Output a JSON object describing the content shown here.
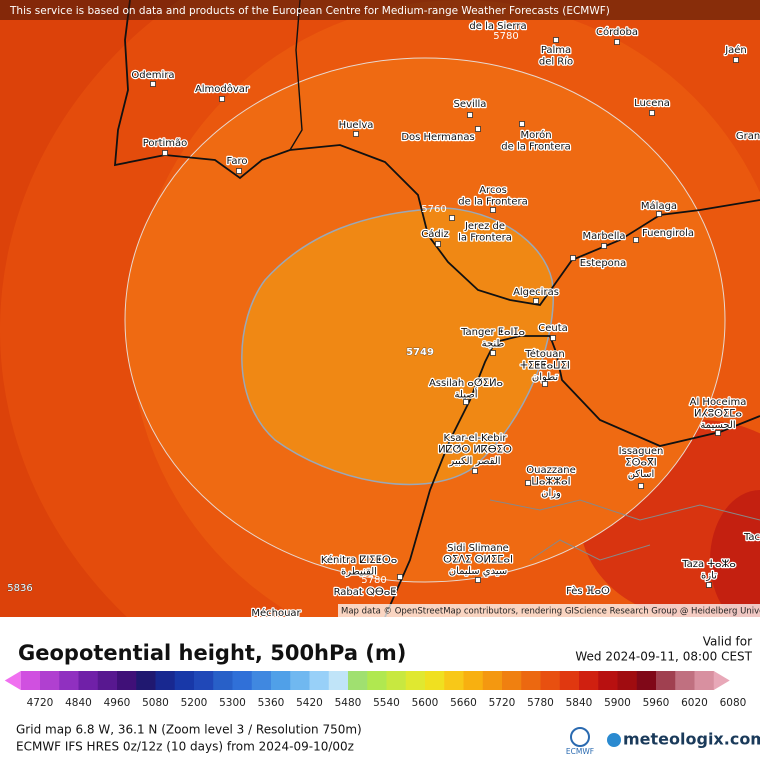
{
  "map": {
    "notice": "This service is based on data and products of the European Centre for Medium-range Weather Forecasts (ECMWF)",
    "attribution": "Map data © OpenStreetMap contributors, rendering GIScience Research Group @ Heidelberg University",
    "contour_labels": [
      "5749",
      "5760",
      "5780",
      "5780",
      "5836"
    ],
    "places": [
      {
        "lines": [
          "Odemira"
        ]
      },
      {
        "lines": [
          "Almodôvar"
        ]
      },
      {
        "lines": [
          "Portimão"
        ]
      },
      {
        "lines": [
          "Faro"
        ]
      },
      {
        "lines": [
          "Huelva"
        ]
      },
      {
        "lines": [
          "Sevilla"
        ]
      },
      {
        "lines": [
          "Dos Hermanas"
        ]
      },
      {
        "lines": [
          "Morón",
          "de la Frontera"
        ]
      },
      {
        "lines": [
          "Palma",
          "del Río"
        ]
      },
      {
        "lines": [
          "Córdoba"
        ]
      },
      {
        "lines": [
          "Jaén"
        ]
      },
      {
        "lines": [
          "Lucena"
        ]
      },
      {
        "lines": [
          "Arcos",
          "de la Frontera"
        ]
      },
      {
        "lines": [
          "Jerez de",
          "la Frontera"
        ]
      },
      {
        "lines": [
          "Cádiz"
        ]
      },
      {
        "lines": [
          "Málaga"
        ]
      },
      {
        "lines": [
          "Fuengirola"
        ]
      },
      {
        "lines": [
          "Marbella"
        ]
      },
      {
        "lines": [
          "Estepona"
        ]
      },
      {
        "lines": [
          "Algeciras"
        ]
      },
      {
        "lines": [
          "Ceuta"
        ]
      },
      {
        "lines": [
          "Tanger ⵟⴰⵏⵊⴰ",
          "طنجة"
        ]
      },
      {
        "lines": [
          "Tétouan",
          "ⵜⵉⵟⵟⴰⵡⵉⵏ",
          "تطوان"
        ]
      },
      {
        "lines": [
          "Assilah ⴰⵚⵉⵍⴰ",
          "أصيلة"
        ]
      },
      {
        "lines": [
          "Ksar-el-Kebir",
          "ⵍⵇⵚⵔ ⵍⴽⴱⵉⵔ",
          "القصر الكبير"
        ]
      },
      {
        "lines": [
          "Ouazzane",
          "ⵡⴰⵣⵣⴰⵏ",
          "وزان"
        ]
      },
      {
        "lines": [
          "Issaguen",
          "ⵉⵙⴰⴳⵏ",
          "اساكن"
        ]
      },
      {
        "lines": [
          "Al Hoceima",
          "ⵍⵃⵓⵙⵉⵎⴰ",
          "الحسيمة"
        ]
      },
      {
        "lines": [
          "Sidi Slimane",
          "ⵙⵉⴷⵉ ⵙⵍⵉⵎⴰⵏ",
          "سيدي سليمان"
        ]
      },
      {
        "lines": [
          "Kénitra ⵇⵏⵉⵟⵔⴰ",
          "القنيطرة"
        ]
      },
      {
        "lines": [
          "Rabat ⵕⴱⴰⵟ"
        ]
      },
      {
        "lines": [
          "Fès ⴼⴰⵙ"
        ]
      },
      {
        "lines": [
          "Taza ⵜⴰⵣⴰ",
          "تازة"
        ]
      },
      {
        "lines": [
          "Méchouar"
        ]
      },
      {
        "lines": [
          "de la Sierra"
        ]
      },
      {
        "lines": [
          "Gran"
        ]
      },
      {
        "lines": [
          "Tac"
        ]
      }
    ]
  },
  "legend": {
    "title": "Geopotential height, 500hPa (m)",
    "valid_label": "Valid for",
    "valid_time": "Wed 2024-09-11, 08:00 CEST",
    "labels": [
      "4720",
      "4840",
      "4960",
      "5080",
      "5200",
      "5300",
      "5360",
      "5420",
      "5480",
      "5540",
      "5600",
      "5660",
      "5720",
      "5780",
      "5840",
      "5900",
      "5960",
      "6020",
      "6080"
    ],
    "colors": [
      "#f070f0",
      "#d050e0",
      "#b040d0",
      "#9030c0",
      "#7020a8",
      "#581890",
      "#401078",
      "#201870",
      "#182890",
      "#1838a8",
      "#2048b8",
      "#2860c8",
      "#3070d8",
      "#4088e0",
      "#50a0e8",
      "#70b8f0",
      "#98d0f8",
      "#c0e4f8",
      "#a0e070",
      "#b0e850",
      "#c8e840",
      "#e0e830",
      "#f0e020",
      "#f8c818",
      "#f8b010",
      "#f49810",
      "#f08010",
      "#ec6810",
      "#e85010",
      "#e03810",
      "#d02010",
      "#b81010",
      "#a00c10",
      "#800818",
      "#a04050",
      "#c07080",
      "#d890a0",
      "#e8a8b8"
    ]
  },
  "footer": {
    "line1": "Grid map 6.8 W, 36.1 N (Zoom level 3 / Resolution 750m)",
    "line2": "ECMWF IFS HRES 0z/12z (10 days) from 2024-09-10/00z",
    "ecmwf": "ECMWF",
    "brand": "meteologix.com"
  }
}
